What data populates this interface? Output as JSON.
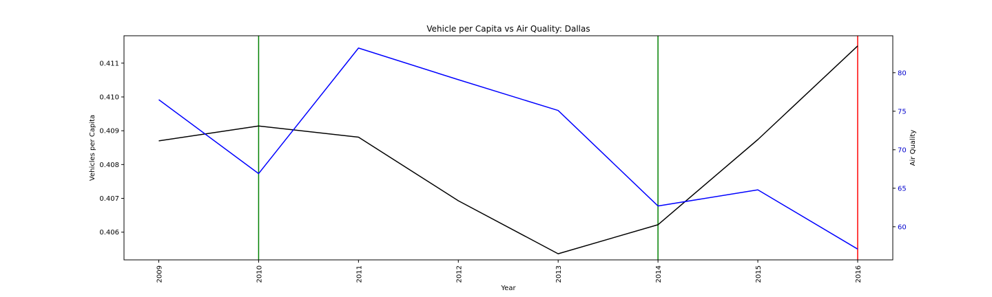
{
  "chart_data": {
    "type": "line",
    "title": "Vehicle per Capita vs Air Quality: Dallas",
    "xlabel": "Year",
    "ylabel_left": "Vehicles per Capita",
    "ylabel_right": "Air Quality",
    "categories": [
      "2009",
      "2010",
      "2011",
      "2012",
      "2013",
      "2014",
      "2015",
      "2016"
    ],
    "ylim_left": [
      0.40518,
      0.41181
    ],
    "ylim_right": [
      55.7,
      84.8
    ],
    "yticks_left": [
      "0.406",
      "0.407",
      "0.408",
      "0.409",
      "0.410",
      "0.411"
    ],
    "yticks_right": [
      "60",
      "65",
      "70",
      "75",
      "80"
    ],
    "series": [
      {
        "axis": "left",
        "color": "#000000",
        "values": [
          0.4087,
          0.40914,
          0.40881,
          0.40693,
          0.40536,
          0.40622,
          0.40874,
          0.41151
        ]
      },
      {
        "axis": "right",
        "color": "#0000ff",
        "values": [
          76.5,
          66.9,
          83.2,
          79.1,
          75.1,
          62.7,
          64.8,
          57.1
        ]
      }
    ],
    "vertical_lines": [
      {
        "x": "2010",
        "color": "#008000"
      },
      {
        "x": "2014",
        "color": "#008000"
      },
      {
        "x": "2016",
        "color": "#ff0000"
      }
    ],
    "right_axis_color": "#0000cc",
    "grid": false,
    "legend": "none"
  }
}
